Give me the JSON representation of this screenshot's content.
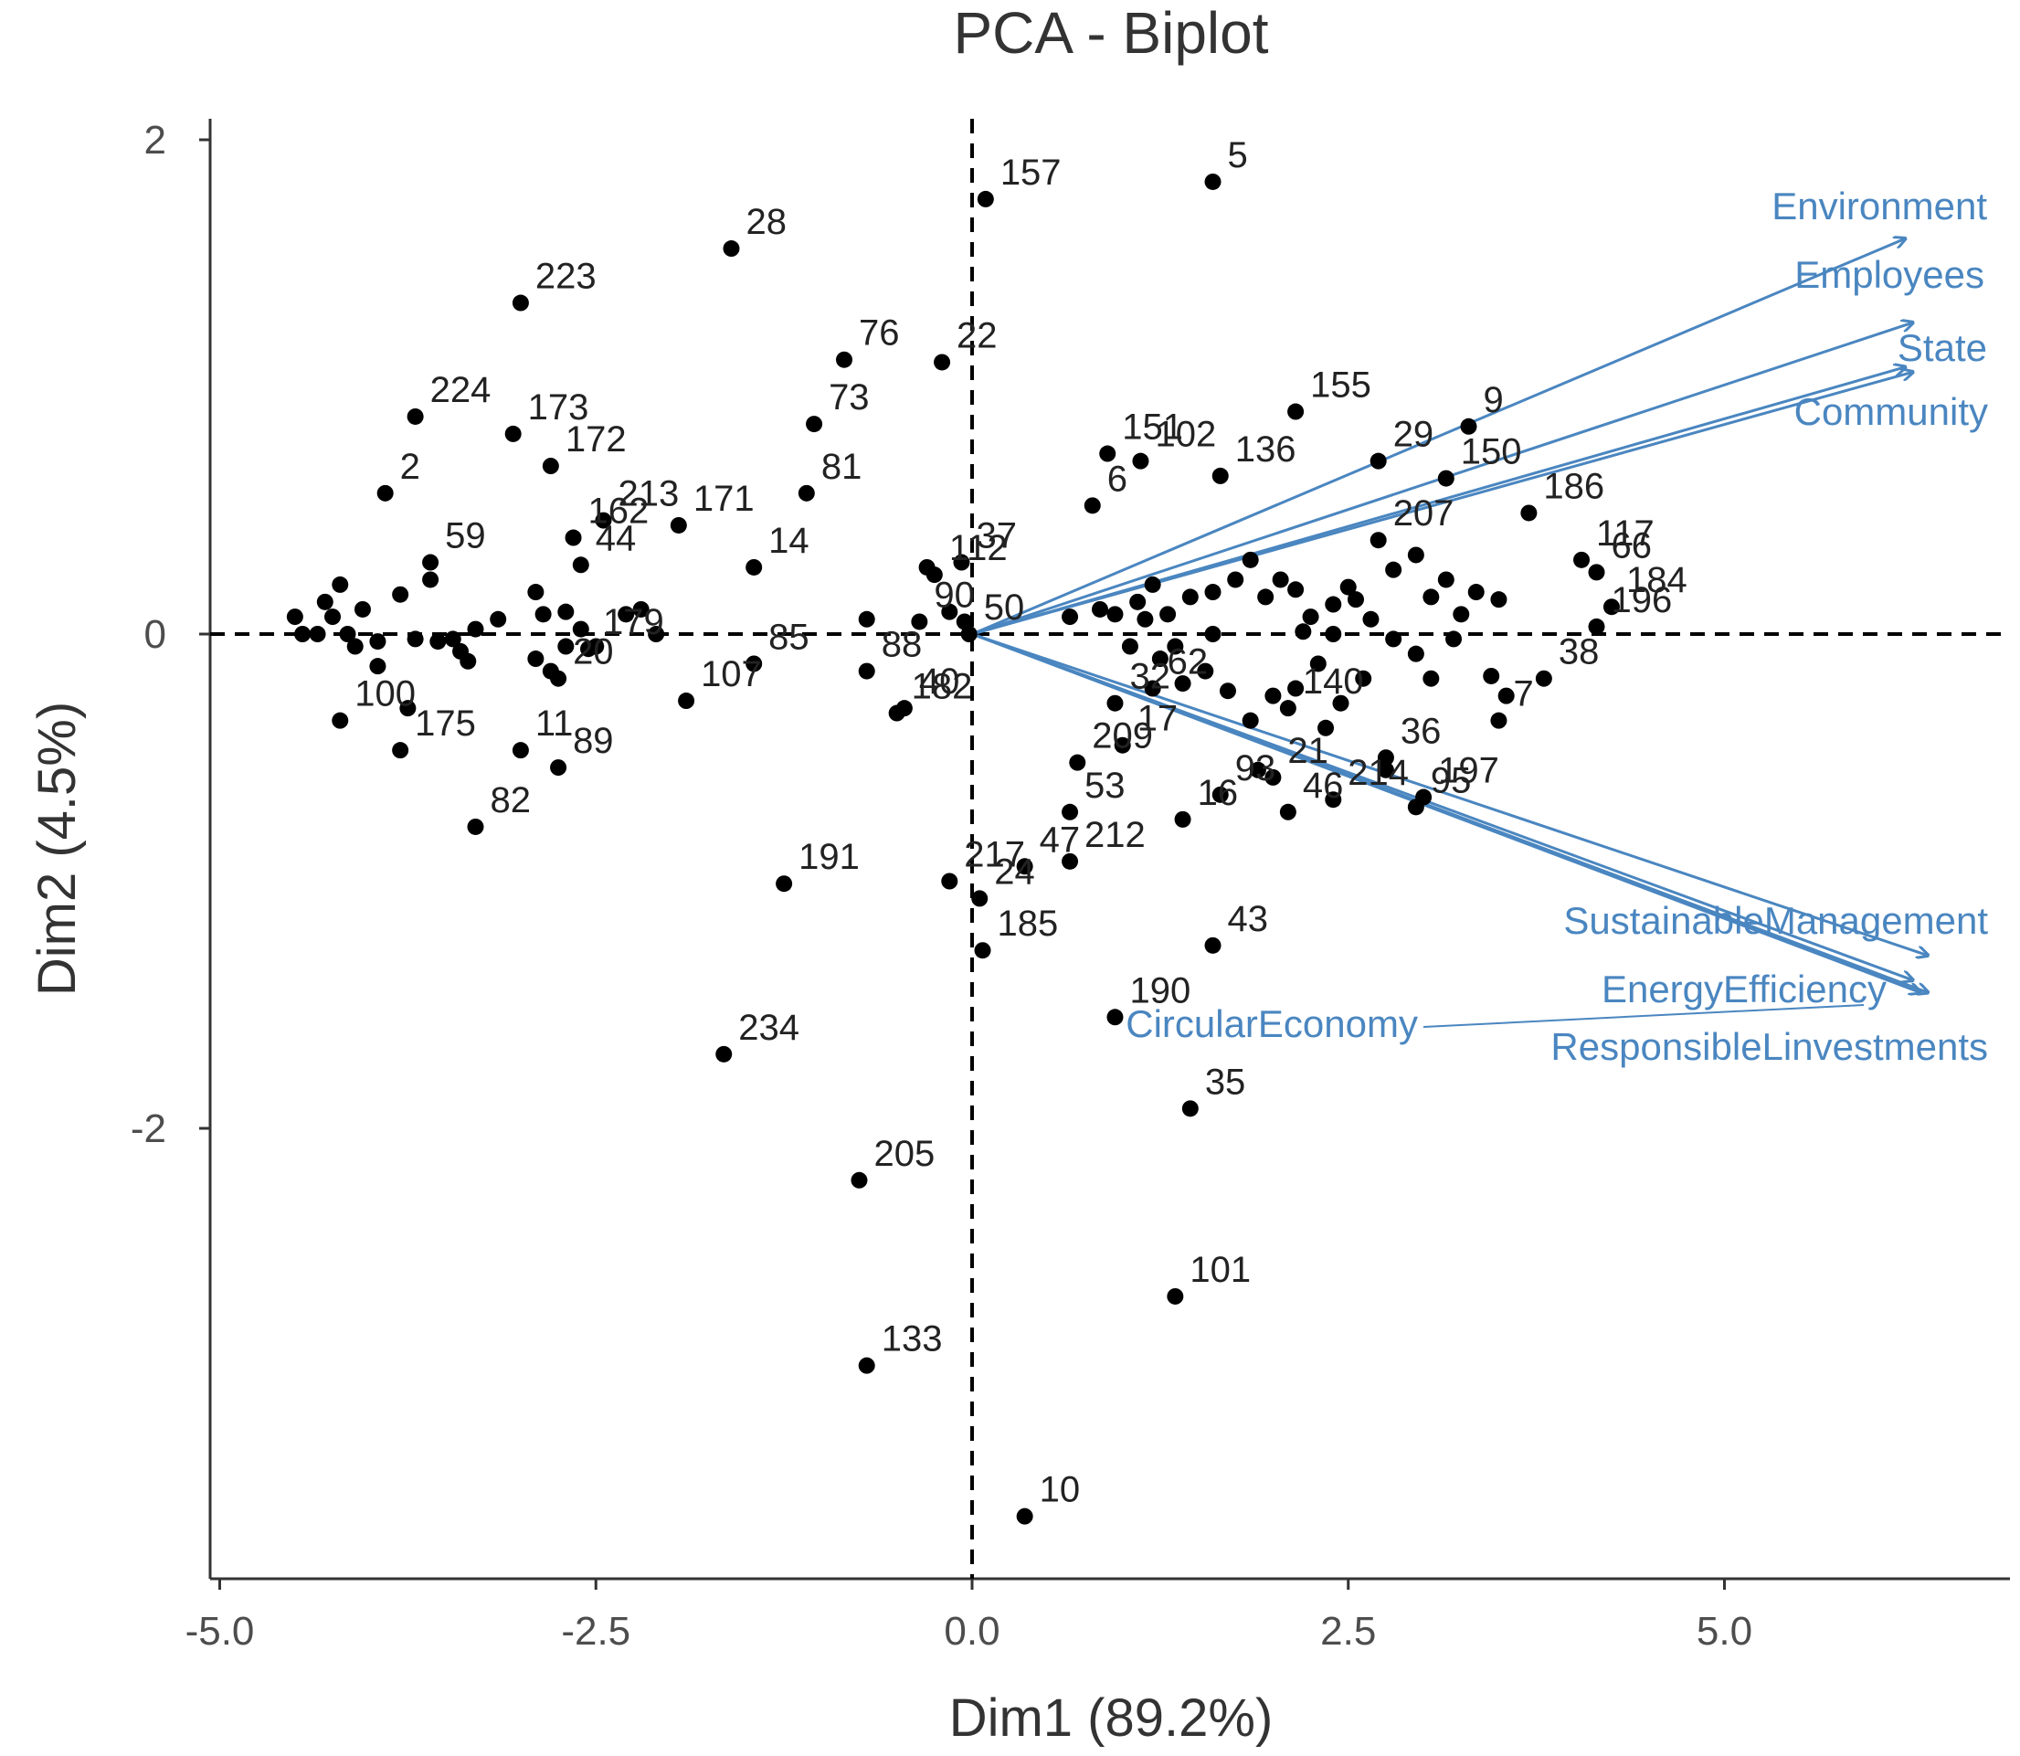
{
  "chart_data": {
    "type": "scatter",
    "title": "PCA - Biplot",
    "xlabel": "Dim1 (89.2%)",
    "ylabel": "Dim2 (4.5%)",
    "xlim": [
      -5.1,
      6.8
    ],
    "ylim": [
      -3.85,
      2.1
    ],
    "xticks": [
      -5.0,
      -2.5,
      0.0,
      2.5,
      5.0
    ],
    "xtick_labels": [
      "-5.0",
      "-2.5",
      "0.0",
      "2.5",
      "5.0"
    ],
    "yticks": [
      2,
      0,
      -2
    ],
    "ytick_labels": [
      "2",
      "0",
      "-2"
    ],
    "reference_lines": {
      "x": 0,
      "y": 0,
      "style": "dashed"
    },
    "colors": {
      "points": "#000000",
      "variables": "#4a86c0",
      "axis": "#333333"
    },
    "labeled_points": [
      {
        "label": "5",
        "x": 1.6,
        "y": 1.83
      },
      {
        "label": "157",
        "x": 0.09,
        "y": 1.76
      },
      {
        "label": "28",
        "x": -1.6,
        "y": 1.56
      },
      {
        "label": "223",
        "x": -3.0,
        "y": 1.34
      },
      {
        "label": "76",
        "x": -0.85,
        "y": 1.11
      },
      {
        "label": "22",
        "x": -0.2,
        "y": 1.1
      },
      {
        "label": "224",
        "x": -3.7,
        "y": 0.88
      },
      {
        "label": "173",
        "x": -3.05,
        "y": 0.81
      },
      {
        "label": "73",
        "x": -1.05,
        "y": 0.85
      },
      {
        "label": "155",
        "x": 2.15,
        "y": 0.9
      },
      {
        "label": "9",
        "x": 3.3,
        "y": 0.84
      },
      {
        "label": "172",
        "x": -2.8,
        "y": 0.68
      },
      {
        "label": "171",
        "x": -1.95,
        "y": 0.44
      },
      {
        "label": "151",
        "x": 0.9,
        "y": 0.73
      },
      {
        "label": "102",
        "x": 1.12,
        "y": 0.7
      },
      {
        "label": "29",
        "x": 2.7,
        "y": 0.7
      },
      {
        "label": "150",
        "x": 3.15,
        "y": 0.63
      },
      {
        "label": "2",
        "x": -3.9,
        "y": 0.57
      },
      {
        "label": "81",
        "x": -1.1,
        "y": 0.57
      },
      {
        "label": "136",
        "x": 1.65,
        "y": 0.64
      },
      {
        "label": "162",
        "x": -2.65,
        "y": 0.39
      },
      {
        "label": "213",
        "x": -2.45,
        "y": 0.46
      },
      {
        "label": "186",
        "x": 3.7,
        "y": 0.49
      },
      {
        "label": "66",
        "x": 4.15,
        "y": 0.25
      },
      {
        "label": "207",
        "x": 2.7,
        "y": 0.38
      },
      {
        "label": "59",
        "x": -3.6,
        "y": 0.29
      },
      {
        "label": "6",
        "x": 0.8,
        "y": 0.52
      },
      {
        "label": "37",
        "x": -0.07,
        "y": 0.29
      },
      {
        "label": "112",
        "x": -0.25,
        "y": 0.24
      },
      {
        "label": "14",
        "x": -1.45,
        "y": 0.27
      },
      {
        "label": "117",
        "x": 4.05,
        "y": 0.3
      },
      {
        "label": "44",
        "x": -2.6,
        "y": 0.28
      },
      {
        "label": "184",
        "x": 4.25,
        "y": 0.11
      },
      {
        "label": "196",
        "x": 4.15,
        "y": 0.03
      },
      {
        "label": "179",
        "x": -2.55,
        "y": -0.06
      },
      {
        "label": "90",
        "x": -0.35,
        "y": 0.05
      },
      {
        "label": "50",
        "x": -0.02,
        "y": 0.0
      },
      {
        "label": "100",
        "x": -4.2,
        "y": -0.35
      },
      {
        "label": "11",
        "x": -3.0,
        "y": -0.47
      },
      {
        "label": "20",
        "x": -2.75,
        "y": -0.18
      },
      {
        "label": "107",
        "x": -1.9,
        "y": -0.27
      },
      {
        "label": "85",
        "x": -1.45,
        "y": -0.12
      },
      {
        "label": "88",
        "x": -0.7,
        "y": -0.15
      },
      {
        "label": "40",
        "x": -0.45,
        "y": -0.3
      },
      {
        "label": "32",
        "x": 0.95,
        "y": -0.28
      },
      {
        "label": "62",
        "x": 1.2,
        "y": -0.22
      },
      {
        "label": "140",
        "x": 2.1,
        "y": -0.3
      },
      {
        "label": "38",
        "x": 3.8,
        "y": -0.18
      },
      {
        "label": "7",
        "x": 3.5,
        "y": -0.35
      },
      {
        "label": "36",
        "x": 2.75,
        "y": -0.5
      },
      {
        "label": "182",
        "x": -0.5,
        "y": -0.32
      },
      {
        "label": "209",
        "x": 0.7,
        "y": -0.52
      },
      {
        "label": "17",
        "x": 1.0,
        "y": -0.45
      },
      {
        "label": "21",
        "x": 2.0,
        "y": -0.58
      },
      {
        "label": "175",
        "x": -3.8,
        "y": -0.47
      },
      {
        "label": "89",
        "x": -2.75,
        "y": -0.54
      },
      {
        "label": "197",
        "x": 3.0,
        "y": -0.66
      },
      {
        "label": "214",
        "x": 2.4,
        "y": -0.67
      },
      {
        "label": "93",
        "x": 1.65,
        "y": -0.65
      },
      {
        "label": "16",
        "x": 1.4,
        "y": -0.75
      },
      {
        "label": "46",
        "x": 2.1,
        "y": -0.72
      },
      {
        "label": "95",
        "x": 2.95,
        "y": -0.7
      },
      {
        "label": "53",
        "x": 0.65,
        "y": -0.72
      },
      {
        "label": "82",
        "x": -3.3,
        "y": -0.78
      },
      {
        "label": "47",
        "x": 0.35,
        "y": -0.94
      },
      {
        "label": "217",
        "x": -0.15,
        "y": -1.0
      },
      {
        "label": "212",
        "x": 0.65,
        "y": -0.92
      },
      {
        "label": "191",
        "x": -1.25,
        "y": -1.01
      },
      {
        "label": "24",
        "x": 0.05,
        "y": -1.07
      },
      {
        "label": "185",
        "x": 0.07,
        "y": -1.28
      },
      {
        "label": "43",
        "x": 1.6,
        "y": -1.26
      },
      {
        "label": "190",
        "x": 0.95,
        "y": -1.55
      },
      {
        "label": "234",
        "x": -1.65,
        "y": -1.7
      },
      {
        "label": "35",
        "x": 1.45,
        "y": -1.92
      },
      {
        "label": "205",
        "x": -0.75,
        "y": -2.21
      },
      {
        "label": "101",
        "x": 1.35,
        "y": -2.68
      },
      {
        "label": "133",
        "x": -0.7,
        "y": -2.96
      },
      {
        "label": "10",
        "x": 0.35,
        "y": -3.57
      }
    ],
    "other_points": [
      [
        -4.5,
        0.07
      ],
      [
        -4.45,
        0.0
      ],
      [
        -4.35,
        0.0
      ],
      [
        -4.3,
        0.13
      ],
      [
        -4.25,
        0.07
      ],
      [
        -4.2,
        0.2
      ],
      [
        -4.15,
        0.0
      ],
      [
        -4.1,
        -0.05
      ],
      [
        -4.05,
        0.1
      ],
      [
        -3.95,
        -0.13
      ],
      [
        -3.95,
        -0.03
      ],
      [
        -3.8,
        0.16
      ],
      [
        -3.75,
        -0.3
      ],
      [
        -3.7,
        -0.02
      ],
      [
        -3.6,
        0.22
      ],
      [
        -3.55,
        -0.03
      ],
      [
        -3.45,
        -0.02
      ],
      [
        -3.4,
        -0.07
      ],
      [
        -3.35,
        -0.11
      ],
      [
        -3.3,
        0.02
      ],
      [
        -3.15,
        0.06
      ],
      [
        -2.9,
        0.17
      ],
      [
        -2.9,
        -0.1
      ],
      [
        -2.85,
        0.08
      ],
      [
        -2.8,
        -0.15
      ],
      [
        -2.7,
        0.09
      ],
      [
        -2.7,
        -0.05
      ],
      [
        -2.6,
        0.02
      ],
      [
        -2.5,
        -0.05
      ],
      [
        -2.3,
        0.08
      ],
      [
        -2.2,
        0.1
      ],
      [
        -2.1,
        0.0
      ],
      [
        -0.7,
        0.06
      ],
      [
        -0.3,
        0.27
      ],
      [
        -0.15,
        0.09
      ],
      [
        -0.05,
        0.05
      ],
      [
        0.65,
        0.07
      ],
      [
        0.85,
        0.1
      ],
      [
        0.95,
        0.08
      ],
      [
        1.1,
        0.13
      ],
      [
        1.2,
        0.2
      ],
      [
        1.3,
        0.08
      ],
      [
        1.45,
        0.15
      ],
      [
        1.6,
        0.17
      ],
      [
        1.75,
        0.22
      ],
      [
        1.85,
        0.3
      ],
      [
        1.95,
        0.15
      ],
      [
        2.05,
        0.22
      ],
      [
        2.15,
        0.18
      ],
      [
        2.25,
        0.07
      ],
      [
        2.4,
        0.12
      ],
      [
        2.5,
        0.19
      ],
      [
        2.55,
        0.14
      ],
      [
        2.65,
        0.06
      ],
      [
        2.8,
        0.26
      ],
      [
        2.95,
        0.32
      ],
      [
        3.05,
        0.15
      ],
      [
        3.15,
        0.22
      ],
      [
        3.25,
        0.08
      ],
      [
        3.35,
        0.17
      ],
      [
        3.5,
        0.14
      ],
      [
        1.05,
        -0.05
      ],
      [
        1.25,
        -0.1
      ],
      [
        1.4,
        -0.2
      ],
      [
        1.55,
        -0.15
      ],
      [
        1.7,
        -0.23
      ],
      [
        1.85,
        -0.35
      ],
      [
        2.0,
        -0.25
      ],
      [
        2.15,
        -0.22
      ],
      [
        2.3,
        -0.12
      ],
      [
        2.45,
        -0.28
      ],
      [
        2.6,
        -0.18
      ],
      [
        2.8,
        -0.02
      ],
      [
        2.95,
        -0.08
      ],
      [
        3.05,
        -0.18
      ],
      [
        3.2,
        -0.02
      ],
      [
        3.45,
        -0.17
      ],
      [
        3.55,
        -0.25
      ],
      [
        1.6,
        0.0
      ],
      [
        1.15,
        0.06
      ],
      [
        1.35,
        -0.05
      ],
      [
        2.2,
        0.01
      ],
      [
        2.4,
        0.0
      ],
      [
        2.35,
        -0.38
      ],
      [
        1.9,
        -0.55
      ],
      [
        2.75,
        -0.55
      ]
    ],
    "variables": [
      {
        "name": "Environment",
        "x": 6.2,
        "y": 1.6
      },
      {
        "name": "Employees",
        "x": 6.25,
        "y": 1.26
      },
      {
        "name": "State",
        "x": 6.25,
        "y": 1.06
      },
      {
        "name": "Community",
        "x": 6.2,
        "y": 1.08
      },
      {
        "name": "SustainableManagement",
        "x": 6.35,
        "y": -1.3
      },
      {
        "name": "EnergyEfficiency",
        "x": 6.3,
        "y": -1.45
      },
      {
        "name": "CircularEconomy",
        "x": 6.25,
        "y": -1.4
      },
      {
        "name": "ResponsibleLinvestments",
        "x": 6.35,
        "y": -1.45
      }
    ]
  }
}
